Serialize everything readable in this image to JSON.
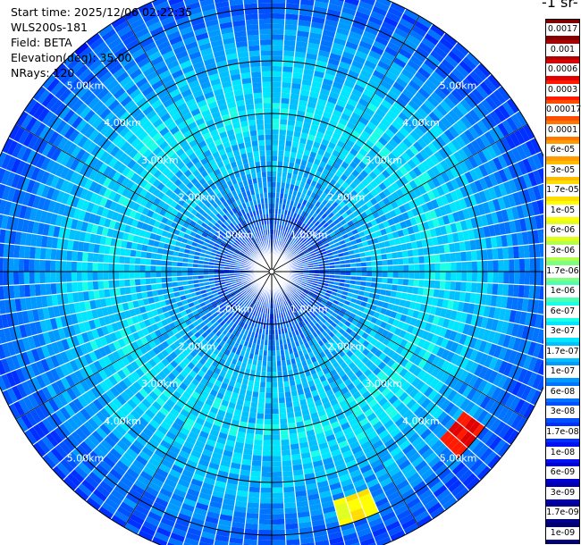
{
  "info": {
    "start_time": "Start time: 2025/12/06 02:22:35",
    "instrument": "WLS200s-181",
    "field": "Field: BETA",
    "elevation": "Elevation(deg): 35.00",
    "nrays": "NRays: 120"
  },
  "chart_data": {
    "type": "polar-ppi",
    "field": "BETA",
    "unit_title": "-1 sr-",
    "n_rays": 120,
    "range_rings_km": [
      1,
      2,
      3,
      4,
      5
    ],
    "ring_labels": [
      "1.00km",
      "2.00km",
      "3.00km",
      "4.00km",
      "5.00km"
    ],
    "max_range_km": 5.6,
    "colorbar_ticks": [
      "0.0017",
      "0.001",
      "0.0006",
      "0.0003",
      "0.00017",
      "0.0001",
      "6e-05",
      "3e-05",
      "1.7e-05",
      "1e-05",
      "6e-06",
      "3e-06",
      "1.7e-06",
      "1e-06",
      "6e-07",
      "3e-07",
      "1.7e-07",
      "1e-07",
      "6e-08",
      "3e-08",
      "1.7e-08",
      "1e-08",
      "6e-09",
      "3e-09",
      "1.7e-09",
      "1e-09"
    ],
    "colorbar_colors": [
      "#800000",
      "#b00000",
      "#e00000",
      "#ff1a00",
      "#ff4d00",
      "#ff7700",
      "#ff9a00",
      "#ffbb00",
      "#ffdd00",
      "#ffff00",
      "#e0ff1f",
      "#b2ff4d",
      "#7fff80",
      "#4dffb2",
      "#1affe6",
      "#00e6ff",
      "#00c0ff",
      "#0099ff",
      "#0073ff",
      "#0050ff",
      "#0030ff",
      "#0010f0",
      "#0000d0",
      "#0000b0",
      "#000090",
      "#000070"
    ],
    "radial_profile_beta": [
      {
        "range_km": 0.5,
        "beta": 3e-08
      },
      {
        "range_km": 1.0,
        "beta": 4e-08
      },
      {
        "range_km": 1.5,
        "beta": 1e-07
      },
      {
        "range_km": 2.0,
        "beta": 1.7e-07
      },
      {
        "range_km": 2.5,
        "beta": 2e-07
      },
      {
        "range_km": 3.0,
        "beta": 3e-07
      },
      {
        "range_km": 3.5,
        "beta": 2.5e-07
      },
      {
        "range_km": 4.0,
        "beta": 1.7e-07
      },
      {
        "range_km": 4.5,
        "beta": 1e-07
      },
      {
        "range_km": 5.0,
        "beta": 6e-08
      },
      {
        "range_km": 5.5,
        "beta": 3e-08
      }
    ],
    "hotspots": [
      {
        "azimuth_deg": 131,
        "range_km": 4.7,
        "beta": 0.0003
      },
      {
        "azimuth_deg": 160,
        "range_km": 4.7,
        "beta": 1e-05
      }
    ]
  }
}
